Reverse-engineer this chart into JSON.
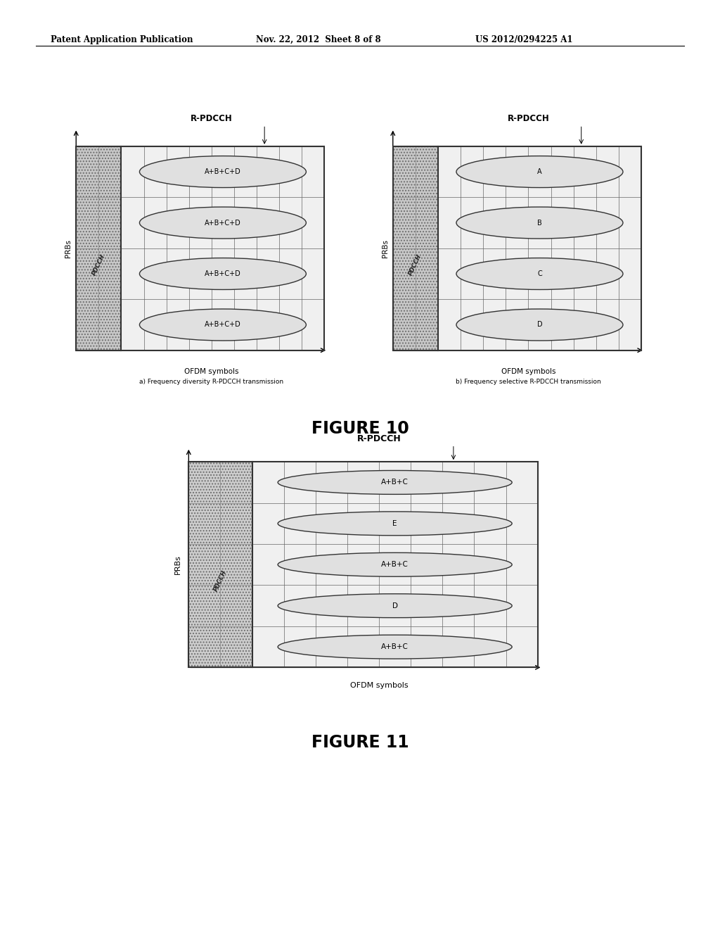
{
  "header_left": "Patent Application Publication",
  "header_mid": "Nov. 22, 2012  Sheet 8 of 8",
  "header_right": "US 2012/0294225 A1",
  "fig10_title": "FIGURE 10",
  "fig11_title": "FIGURE 11",
  "fig10a_title": "R-PDCCH",
  "fig10a_subtitle": "a) Frequency diversity R-PDCCH transmission",
  "fig10a_xlabel": "OFDM symbols",
  "fig10a_ylabel": "PRBs",
  "fig10a_pdcch_label": "PDCCH",
  "fig10a_labels": [
    "A+B+C+D",
    "A+B+C+D",
    "A+B+C+D",
    "A+B+C+D"
  ],
  "fig10b_title": "R-PDCCH",
  "fig10b_subtitle": "b) Frequency selective R-PDCCH transmission",
  "fig10b_xlabel": "OFDM symbols",
  "fig10b_ylabel": "PRBs",
  "fig10b_pdcch_label": "PDCCH",
  "fig10b_labels": [
    "A",
    "B",
    "C",
    "D"
  ],
  "fig11_main_title": "R-PDCCH",
  "fig11_xlabel": "OFDM symbols",
  "fig11_ylabel": "PRBs",
  "fig11_pdcch_label": "PDCCH",
  "fig11_labels": [
    "A+B+C",
    "E",
    "A+B+C",
    "D",
    "A+B+C"
  ],
  "background_color": "#ffffff",
  "grid_color": "#888888",
  "ellipse_facecolor": "#e0e0e0",
  "hatch_facecolor": "#c8c8c8",
  "text_color": "#000000"
}
